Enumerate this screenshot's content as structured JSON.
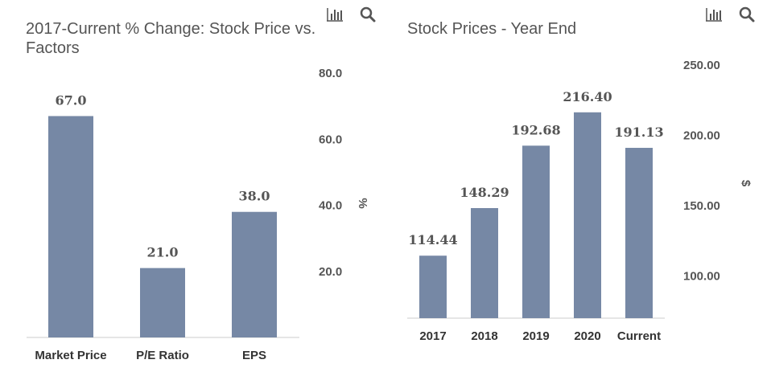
{
  "colors": {
    "bar": "#7688a5",
    "text": "#555555",
    "axis": "#cccccc"
  },
  "toolbar": {
    "chart_icon": "bar-chart-icon",
    "zoom_icon": "magnifier-icon"
  },
  "chart_data": [
    {
      "type": "bar",
      "title": "2017-Current % Change: Stock Price vs. Factors",
      "categories": [
        "Market Price",
        "P/E Ratio",
        "EPS"
      ],
      "values": [
        67.0,
        21.0,
        38.0
      ],
      "value_labels": [
        "67.0",
        "21.0",
        "38.0"
      ],
      "ylabel": "%",
      "ylim": [
        0,
        80
      ],
      "yticks": [
        20,
        40,
        60,
        80
      ],
      "ytick_labels": [
        "20.0",
        "40.0",
        "60.0",
        "80.0"
      ],
      "yaxis_position": "right",
      "grid": false,
      "legend": "none"
    },
    {
      "type": "bar",
      "title": "Stock Prices - Year End",
      "categories": [
        "2017",
        "2018",
        "2019",
        "2020",
        "Current"
      ],
      "values": [
        114.44,
        148.29,
        192.68,
        216.4,
        191.13
      ],
      "value_labels": [
        "114.44",
        "148.29",
        "192.68",
        "216.40",
        "191.13"
      ],
      "ylabel": "$",
      "ylim": [
        70,
        250
      ],
      "yticks": [
        100,
        150,
        200,
        250
      ],
      "ytick_labels": [
        "100.00",
        "150.00",
        "200.00",
        "250.00"
      ],
      "yaxis_position": "right",
      "grid": false,
      "legend": "none"
    }
  ]
}
